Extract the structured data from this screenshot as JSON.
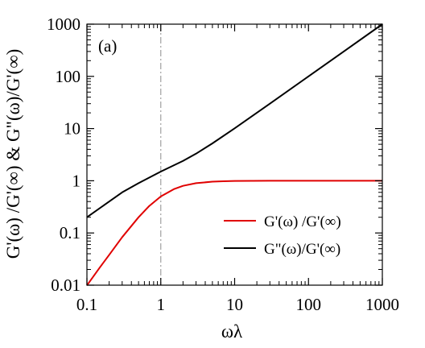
{
  "chart_data": {
    "type": "line",
    "panel_label": "(a)",
    "xlabel": "ωλ",
    "ylabel": "G'(ω) /G'(∞) & G\"(ω)/G'(∞)",
    "xscale": "log",
    "yscale": "log",
    "xlim": [
      0.1,
      1000
    ],
    "ylim": [
      0.01,
      1000
    ],
    "x_ticks": [
      {
        "value": 0.1,
        "label": "0.1"
      },
      {
        "value": 1,
        "label": "1"
      },
      {
        "value": 10,
        "label": "10"
      },
      {
        "value": 100,
        "label": "100"
      },
      {
        "value": 1000,
        "label": "1000"
      }
    ],
    "y_ticks": [
      {
        "value": 0.01,
        "label": "0.01"
      },
      {
        "value": 0.1,
        "label": "0.1"
      },
      {
        "value": 1,
        "label": "1"
      },
      {
        "value": 10,
        "label": "10"
      },
      {
        "value": 100,
        "label": "100"
      },
      {
        "value": 1000,
        "label": "1000"
      }
    ],
    "reference_line": {
      "x": 1,
      "style": "dash-dot",
      "color": "#a0a0a0"
    },
    "legend_position": "right",
    "series": [
      {
        "name": "G'(ω) /G'(∞)",
        "color": "#e00000",
        "x": [
          0.1,
          0.15,
          0.2,
          0.3,
          0.5,
          0.7,
          1,
          1.5,
          2,
          3,
          5,
          7,
          10,
          30,
          100,
          1000
        ],
        "y": [
          0.0099,
          0.022,
          0.038,
          0.083,
          0.2,
          0.33,
          0.5,
          0.69,
          0.8,
          0.9,
          0.96,
          0.98,
          0.99,
          1.0,
          1.0,
          1.0
        ]
      },
      {
        "name": "G\"(ω)/G'(∞)",
        "color": "#000000",
        "x": [
          0.1,
          0.2,
          0.3,
          0.5,
          1,
          2,
          3,
          5,
          10,
          30,
          100,
          300,
          1000
        ],
        "y": [
          0.2,
          0.4,
          0.6,
          0.9,
          1.5,
          2.4,
          3.3,
          5.2,
          10.1,
          30.0,
          100,
          300,
          1000
        ]
      }
    ]
  }
}
